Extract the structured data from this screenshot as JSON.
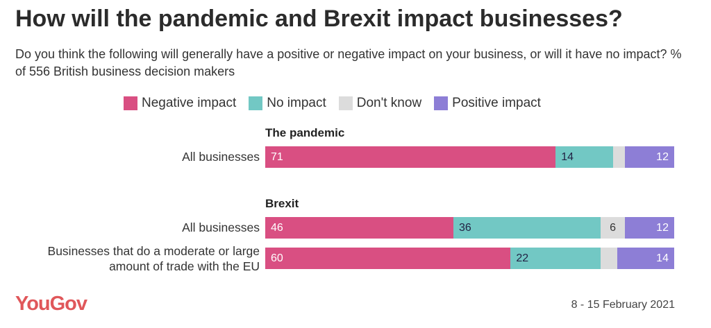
{
  "title": "How will the pandemic and Brexit impact businesses?",
  "subtitle": "Do you think the following will generally have a positive or negative impact on your business, or will it have no impact? % of 556 British business decision makers",
  "footer": {
    "logo": "YouGov",
    "date": "8 - 15 February 2021"
  },
  "chart_data": {
    "type": "bar",
    "orientation": "horizontal-stacked",
    "series": [
      {
        "name": "Negative impact",
        "color": "#d94f82"
      },
      {
        "name": "No impact",
        "color": "#72c8c4"
      },
      {
        "name": "Don't know",
        "color": "#dcdcdc"
      },
      {
        "name": "Positive impact",
        "color": "#8d7ed6"
      }
    ],
    "groups": [
      {
        "title": "The pandemic",
        "rows": [
          {
            "label": "All businesses",
            "values": [
              71,
              14,
              3,
              12
            ],
            "labels_shown": [
              true,
              true,
              false,
              true
            ]
          }
        ]
      },
      {
        "title": "Brexit",
        "rows": [
          {
            "label": "All businesses",
            "values": [
              46,
              36,
              6,
              12
            ],
            "labels_shown": [
              true,
              true,
              true,
              true
            ]
          },
          {
            "label": "Businesses that do a moderate or large amount of trade with the EU",
            "values": [
              60,
              22,
              4,
              14
            ],
            "labels_shown": [
              true,
              true,
              false,
              true
            ]
          }
        ]
      }
    ],
    "xlim": [
      0,
      100
    ]
  }
}
